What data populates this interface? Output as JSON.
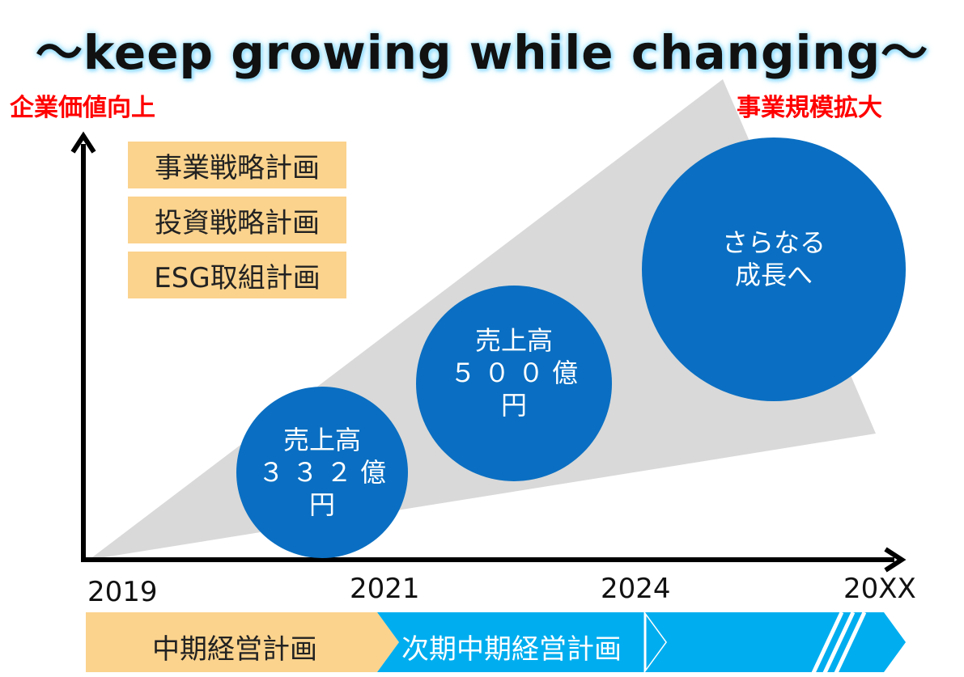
{
  "title": "～keep growing while changing～",
  "y_axis_label": "企業価値向上",
  "right_label": "事業規模拡大",
  "plans": [
    "事業戦略計画",
    "投資戦略計画",
    "ESG取組計画"
  ],
  "circles": [
    {
      "lines": [
        "売上高",
        "３３２億",
        "円"
      ]
    },
    {
      "lines": [
        "売上高",
        "５００億",
        "円"
      ]
    },
    {
      "lines": [
        "さらなる",
        "成長へ"
      ]
    }
  ],
  "years": [
    "2019",
    "2021",
    "2024",
    "20XX"
  ],
  "phases": [
    "中期経営計画",
    "次期中期経営計画"
  ],
  "colors": {
    "title_glow": "#9fe3ff",
    "red_label": "#ff0000",
    "plan_box": "#fbd38d",
    "circle": "#0a6fc2",
    "wedge": "#d9d9d9",
    "phase_current": "#fbd38d",
    "phase_next": "#00aeef",
    "axis": "#000000"
  }
}
